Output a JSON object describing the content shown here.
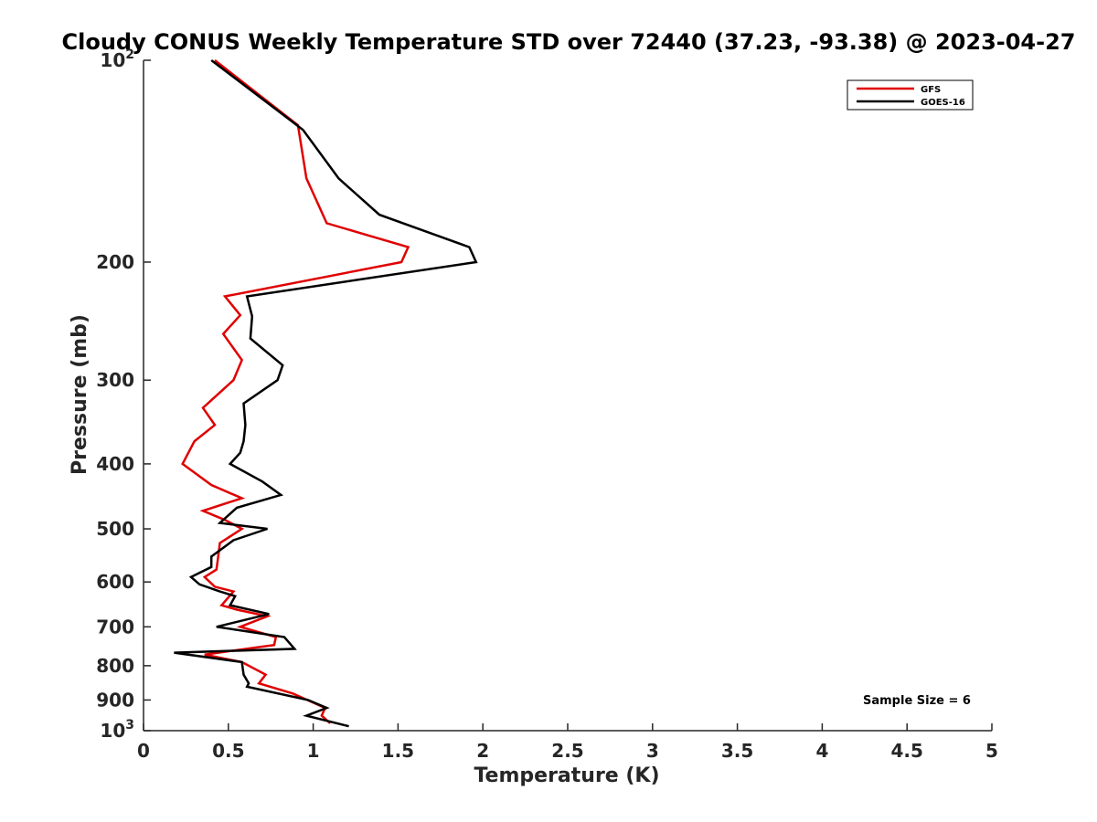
{
  "chart_data": {
    "type": "line",
    "title": "Cloudy CONUS Weekly Temperature STD over 72440 (37.23, -93.38) @ 2023-04-27",
    "xlabel": "Temperature (K)",
    "ylabel": "Pressure (mb)",
    "xlim": [
      0,
      5
    ],
    "ylim": [
      100,
      1000
    ],
    "y_scale": "log",
    "y_reversed": true,
    "x_ticks": [
      "0",
      "0.5",
      "1",
      "1.5",
      "2",
      "2.5",
      "3",
      "3.5",
      "4",
      "4.5",
      "5"
    ],
    "y_ticks": [
      {
        "value": 100,
        "base": "10",
        "exp": "2",
        "text": ""
      },
      {
        "value": 200,
        "text": "200"
      },
      {
        "value": 300,
        "text": "300"
      },
      {
        "value": 400,
        "text": "400"
      },
      {
        "value": 500,
        "text": "500"
      },
      {
        "value": 600,
        "text": "600"
      },
      {
        "value": 700,
        "text": "700"
      },
      {
        "value": 800,
        "text": "800"
      },
      {
        "value": 900,
        "text": "900"
      },
      {
        "value": 1000,
        "base": "10",
        "exp": "3",
        "text": ""
      }
    ],
    "grid": false,
    "legend_position": "top-right",
    "annotation": "Sample Size = 6",
    "series": [
      {
        "name": "GFS",
        "color": "#e00000",
        "points": [
          [
            0.42,
            100
          ],
          [
            0.91,
            125
          ],
          [
            0.96,
            150
          ],
          [
            1.08,
            175
          ],
          [
            1.56,
            190
          ],
          [
            1.52,
            200
          ],
          [
            0.48,
            225
          ],
          [
            0.57,
            240
          ],
          [
            0.47,
            256
          ],
          [
            0.58,
            280
          ],
          [
            0.53,
            300
          ],
          [
            0.35,
            330
          ],
          [
            0.42,
            350
          ],
          [
            0.3,
            370
          ],
          [
            0.23,
            400
          ],
          [
            0.4,
            430
          ],
          [
            0.58,
            450
          ],
          [
            0.35,
            470
          ],
          [
            0.48,
            485
          ],
          [
            0.58,
            500
          ],
          [
            0.45,
            525
          ],
          [
            0.44,
            550
          ],
          [
            0.43,
            575
          ],
          [
            0.36,
            590
          ],
          [
            0.42,
            610
          ],
          [
            0.53,
            620
          ],
          [
            0.46,
            650
          ],
          [
            0.55,
            660
          ],
          [
            0.73,
            675
          ],
          [
            0.57,
            700
          ],
          [
            0.78,
            725
          ],
          [
            0.77,
            745
          ],
          [
            0.36,
            770
          ],
          [
            0.58,
            790
          ],
          [
            0.72,
            825
          ],
          [
            0.68,
            850
          ],
          [
            0.88,
            880
          ],
          [
            1.07,
            925
          ],
          [
            1.05,
            950
          ],
          [
            1.1,
            975
          ]
        ]
      },
      {
        "name": "GOES-16",
        "color": "#000000",
        "points": [
          [
            0.4,
            100
          ],
          [
            0.94,
            127
          ],
          [
            1.15,
            150
          ],
          [
            1.39,
            170
          ],
          [
            1.92,
            190
          ],
          [
            1.96,
            200
          ],
          [
            0.61,
            225
          ],
          [
            0.64,
            241
          ],
          [
            0.63,
            260
          ],
          [
            0.82,
            285
          ],
          [
            0.79,
            300
          ],
          [
            0.59,
            325
          ],
          [
            0.6,
            350
          ],
          [
            0.59,
            370
          ],
          [
            0.57,
            385
          ],
          [
            0.51,
            400
          ],
          [
            0.7,
            425
          ],
          [
            0.81,
            445
          ],
          [
            0.55,
            465
          ],
          [
            0.45,
            490
          ],
          [
            0.73,
            500
          ],
          [
            0.53,
            520
          ],
          [
            0.4,
            550
          ],
          [
            0.4,
            570
          ],
          [
            0.28,
            590
          ],
          [
            0.33,
            605
          ],
          [
            0.45,
            620
          ],
          [
            0.54,
            630
          ],
          [
            0.51,
            650
          ],
          [
            0.74,
            670
          ],
          [
            0.43,
            700
          ],
          [
            0.83,
            725
          ],
          [
            0.89,
            755
          ],
          [
            0.18,
            765
          ],
          [
            0.58,
            790
          ],
          [
            0.59,
            825
          ],
          [
            0.62,
            850
          ],
          [
            0.61,
            860
          ],
          [
            0.97,
            900
          ],
          [
            1.08,
            925
          ],
          [
            0.96,
            950
          ],
          [
            1.21,
            985
          ]
        ]
      }
    ]
  }
}
